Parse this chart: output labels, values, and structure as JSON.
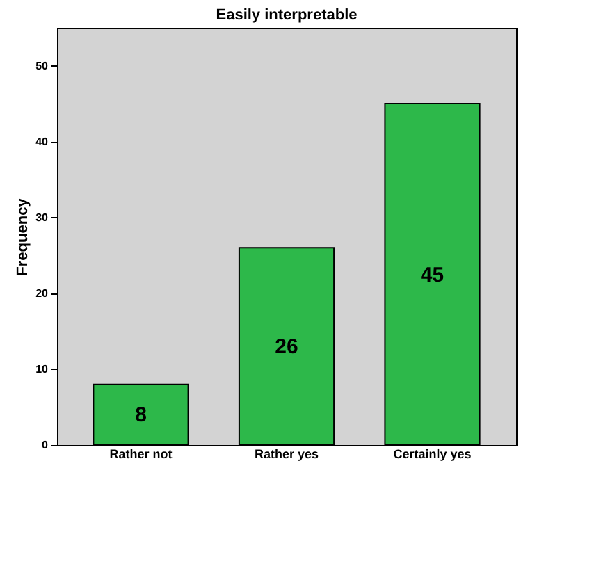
{
  "chart_data": {
    "type": "bar",
    "title": "Easily interpretable",
    "ylabel": "Frequency",
    "categories": [
      "Rather not",
      "Rather yes",
      "Certainly yes"
    ],
    "values": [
      8,
      26,
      45
    ],
    "color": "#2db84a",
    "ylim": [
      0,
      55
    ],
    "yticks": [
      0,
      10,
      20,
      30,
      40,
      50
    ],
    "grid": false,
    "data_labels": true
  }
}
